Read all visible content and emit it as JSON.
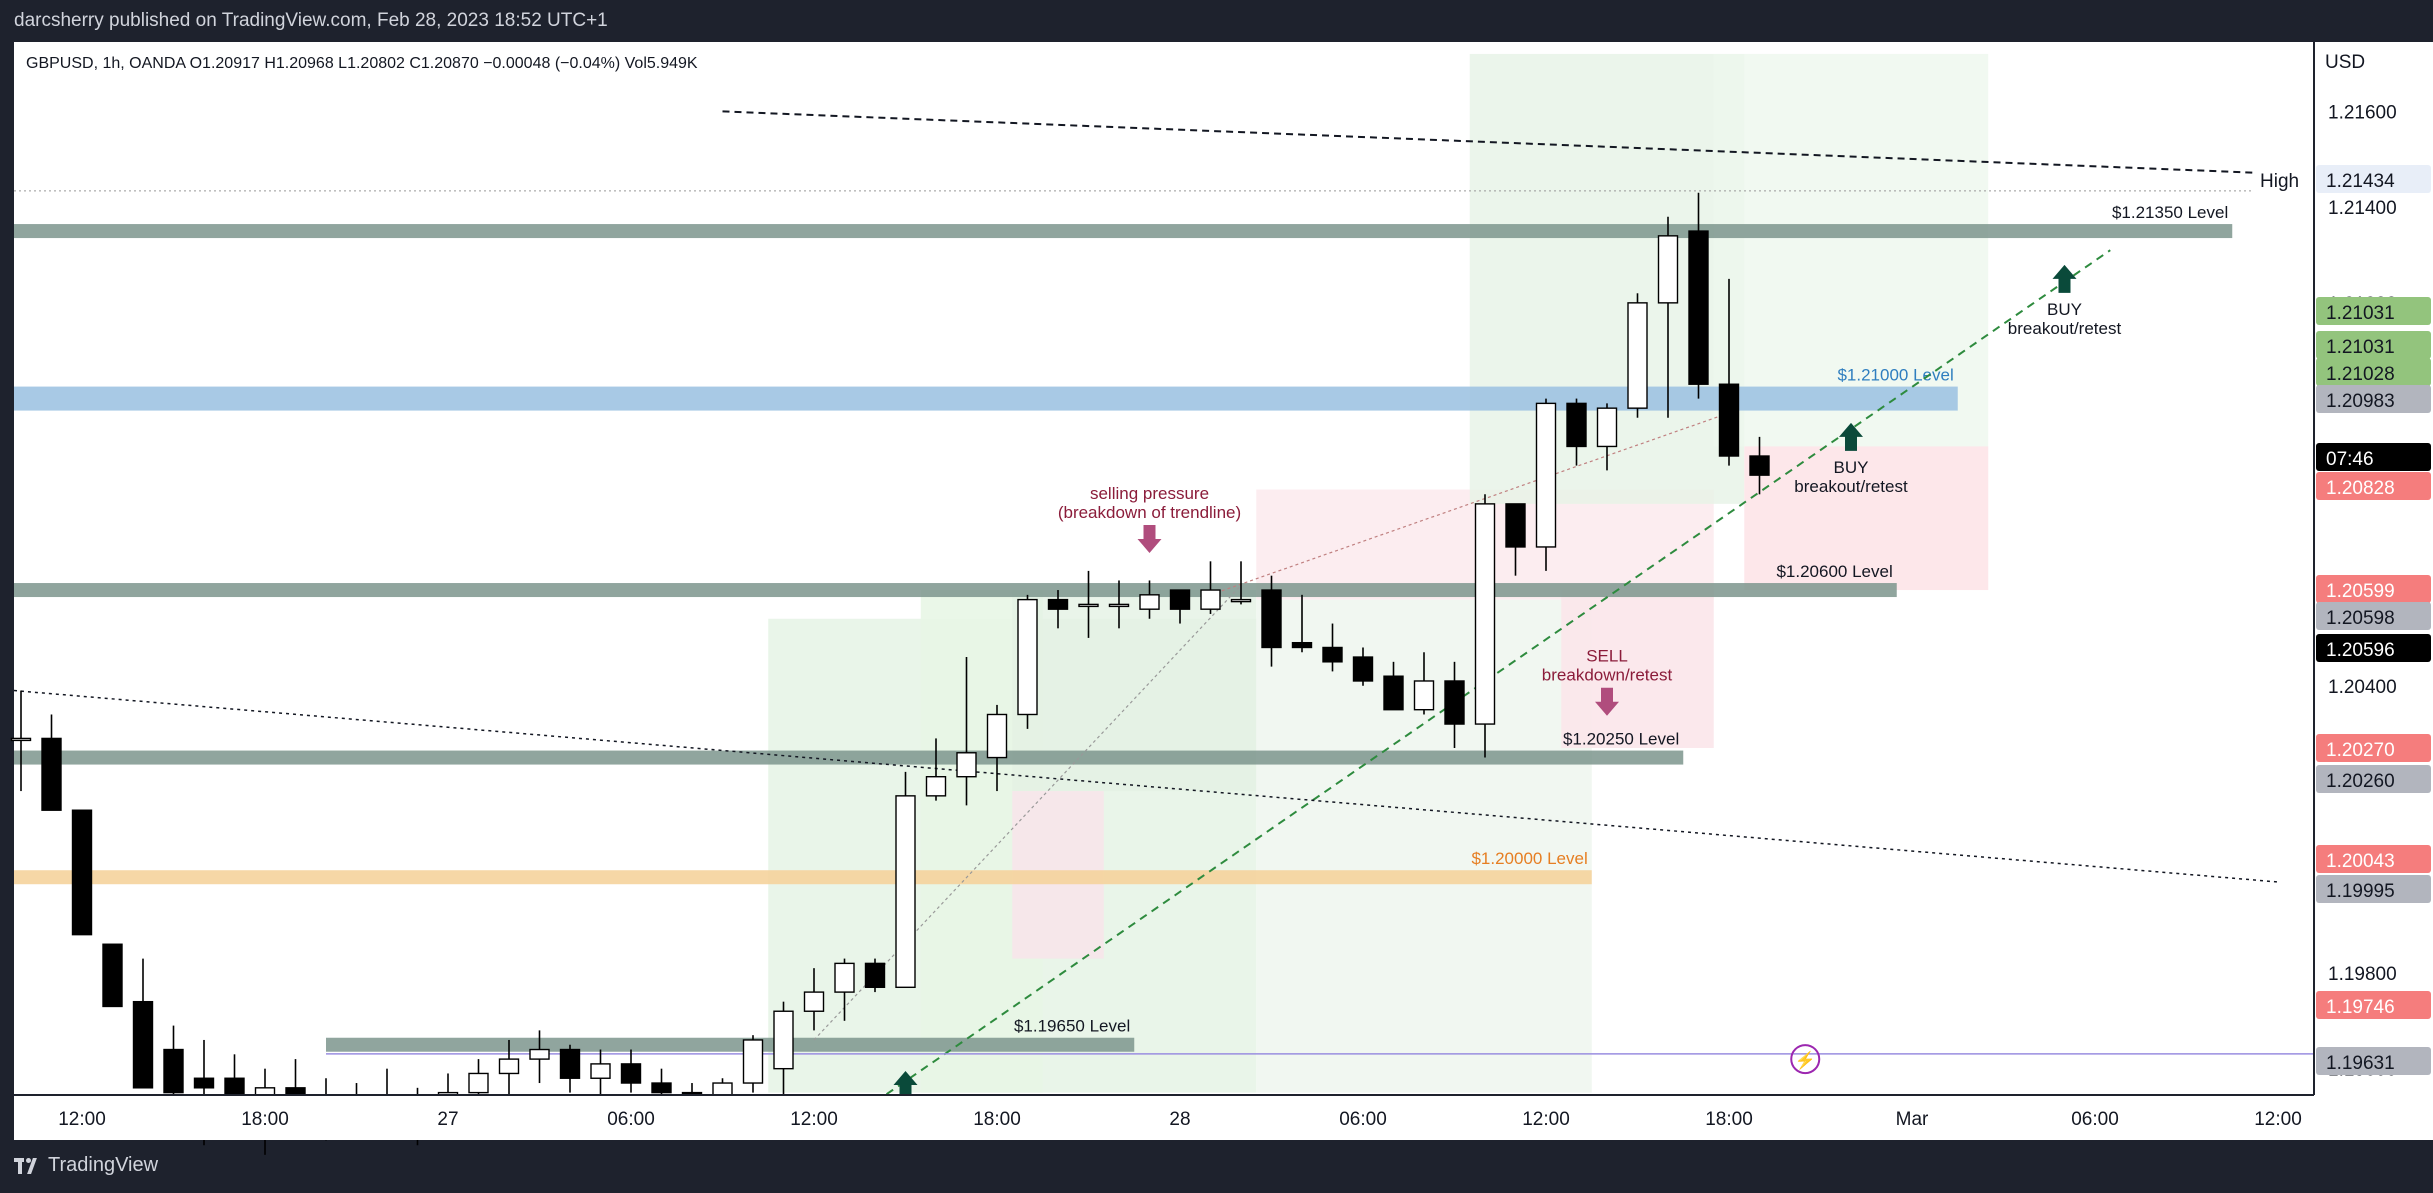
{
  "header": {
    "caption": "darcsherry published on TradingView.com, Feb 28, 2023 18:52 UTC+1",
    "symbol_line": "GBPUSD, 1h, OANDA  O1.20917  H1.20968  L1.20802  C1.20870  −0.00048 (−0.04%)  Vol5.949K"
  },
  "footer": {
    "brand": "TradingView"
  },
  "colors": {
    "up_body": "#ffffff",
    "down_body": "#000000",
    "wick": "#000000",
    "level_gray": "#7d958d",
    "level_blue": "#9ec3e2",
    "level_orange": "#f5d39c",
    "label_green": "#93c47d",
    "label_red": "#f57d7d",
    "label_gray": "#b2b5be",
    "annot_purple": "#b04d7d",
    "arrow_dark": "#0a4a3a",
    "level_blue_text": "#2f7ebf",
    "level_orange_text": "#e67e22"
  },
  "chart_data": {
    "type": "candlestick",
    "symbol": "GBPUSD",
    "interval": "1h",
    "exchange": "OANDA",
    "currency_label": "USD",
    "ylim": [
      1.19545,
      1.21745
    ],
    "y_ticks": [
      "1.21600",
      "1.21400",
      "1.21200",
      "1.20400",
      "1.19800",
      "1.19600"
    ],
    "x_ticks": [
      {
        "label": "12:00",
        "i": 0
      },
      {
        "label": "18:00",
        "i": 6
      },
      {
        "label": "27",
        "i": 12
      },
      {
        "label": "06:00",
        "i": 18
      },
      {
        "label": "12:00",
        "i": 24
      },
      {
        "label": "18:00",
        "i": 30
      },
      {
        "label": "28",
        "i": 36
      },
      {
        "label": "06:00",
        "i": 42
      },
      {
        "label": "12:00",
        "i": 48
      },
      {
        "label": "18:00",
        "i": 54
      },
      {
        "label": "Mar",
        "i": 60
      },
      {
        "label": "06:00",
        "i": 66
      },
      {
        "label": "12:00",
        "i": 72
      }
    ],
    "candles": [
      {
        "i": -2,
        "o": 1.2029,
        "h": 1.2039,
        "l": 1.2018,
        "c": 1.2029
      },
      {
        "i": -1,
        "o": 1.2029,
        "h": 1.2034,
        "l": 1.2014,
        "c": 1.2014
      },
      {
        "i": 0,
        "o": 1.2014,
        "h": 1.2014,
        "l": 1.1988,
        "c": 1.1988
      },
      {
        "i": 1,
        "o": 1.1986,
        "h": 1.1986,
        "l": 1.1973,
        "c": 1.1973
      },
      {
        "i": 2,
        "o": 1.1974,
        "h": 1.1983,
        "l": 1.1956,
        "c": 1.1956
      },
      {
        "i": 3,
        "o": 1.1964,
        "h": 1.1969,
        "l": 1.1947,
        "c": 1.1955
      },
      {
        "i": 4,
        "o": 1.1958,
        "h": 1.1966,
        "l": 1.1944,
        "c": 1.1956
      },
      {
        "i": 5,
        "o": 1.1958,
        "h": 1.1963,
        "l": 1.1946,
        "c": 1.1952
      },
      {
        "i": 6,
        "o": 1.195,
        "h": 1.196,
        "l": 1.1942,
        "c": 1.1956
      },
      {
        "i": 7,
        "o": 1.1956,
        "h": 1.1962,
        "l": 1.1948,
        "c": 1.1953
      },
      {
        "i": 8,
        "o": 1.1953,
        "h": 1.1958,
        "l": 1.1945,
        "c": 1.1951
      },
      {
        "i": 9,
        "o": 1.1951,
        "h": 1.1957,
        "l": 1.1946,
        "c": 1.1954
      },
      {
        "i": 10,
        "o": 1.1954,
        "h": 1.196,
        "l": 1.1948,
        "c": 1.195
      },
      {
        "i": 11,
        "o": 1.195,
        "h": 1.1956,
        "l": 1.1944,
        "c": 1.1953
      },
      {
        "i": 12,
        "o": 1.1953,
        "h": 1.1959,
        "l": 1.1946,
        "c": 1.1955
      },
      {
        "i": 13,
        "o": 1.1955,
        "h": 1.1962,
        "l": 1.195,
        "c": 1.1959
      },
      {
        "i": 14,
        "o": 1.1959,
        "h": 1.1966,
        "l": 1.1954,
        "c": 1.1962
      },
      {
        "i": 15,
        "o": 1.1962,
        "h": 1.1968,
        "l": 1.1957,
        "c": 1.1964
      },
      {
        "i": 16,
        "o": 1.1964,
        "h": 1.1965,
        "l": 1.1955,
        "c": 1.1958
      },
      {
        "i": 17,
        "o": 1.1958,
        "h": 1.1964,
        "l": 1.195,
        "c": 1.1961
      },
      {
        "i": 18,
        "o": 1.1961,
        "h": 1.1964,
        "l": 1.1955,
        "c": 1.1957
      },
      {
        "i": 19,
        "o": 1.1957,
        "h": 1.196,
        "l": 1.1952,
        "c": 1.1955
      },
      {
        "i": 20,
        "o": 1.1955,
        "h": 1.1957,
        "l": 1.195,
        "c": 1.1951
      },
      {
        "i": 21,
        "o": 1.1951,
        "h": 1.1958,
        "l": 1.1949,
        "c": 1.1957
      },
      {
        "i": 22,
        "o": 1.1957,
        "h": 1.1967,
        "l": 1.1955,
        "c": 1.1966
      },
      {
        "i": 23,
        "o": 1.196,
        "h": 1.1974,
        "l": 1.195,
        "c": 1.1972
      },
      {
        "i": 24,
        "o": 1.1972,
        "h": 1.1981,
        "l": 1.1968,
        "c": 1.1976
      },
      {
        "i": 25,
        "o": 1.1976,
        "h": 1.1983,
        "l": 1.197,
        "c": 1.1982
      },
      {
        "i": 26,
        "o": 1.1982,
        "h": 1.1983,
        "l": 1.1976,
        "c": 1.1977
      },
      {
        "i": 27,
        "o": 1.1977,
        "h": 1.2022,
        "l": 1.1977,
        "c": 1.2017
      },
      {
        "i": 28,
        "o": 1.2017,
        "h": 1.2029,
        "l": 1.2016,
        "c": 1.2021
      },
      {
        "i": 29,
        "o": 1.2021,
        "h": 1.2046,
        "l": 1.2015,
        "c": 1.2026
      },
      {
        "i": 30,
        "o": 1.2025,
        "h": 1.2036,
        "l": 1.2018,
        "c": 1.2034
      },
      {
        "i": 31,
        "o": 1.2034,
        "h": 1.2059,
        "l": 1.2031,
        "c": 1.2058
      },
      {
        "i": 32,
        "o": 1.2058,
        "h": 1.206,
        "l": 1.2052,
        "c": 1.2056
      },
      {
        "i": 33,
        "o": 1.2057,
        "h": 1.2064,
        "l": 1.205,
        "c": 1.2057
      },
      {
        "i": 34,
        "o": 1.2057,
        "h": 1.2062,
        "l": 1.2052,
        "c": 1.2057
      },
      {
        "i": 35,
        "o": 1.2056,
        "h": 1.2062,
        "l": 1.2054,
        "c": 1.2059
      },
      {
        "i": 36,
        "o": 1.206,
        "h": 1.206,
        "l": 1.2053,
        "c": 1.2056
      },
      {
        "i": 37,
        "o": 1.2056,
        "h": 1.2066,
        "l": 1.2055,
        "c": 1.206
      },
      {
        "i": 38,
        "o": 1.2058,
        "h": 1.2066,
        "l": 1.2057,
        "c": 1.2058
      },
      {
        "i": 39,
        "o": 1.206,
        "h": 1.2063,
        "l": 1.2044,
        "c": 1.2048
      },
      {
        "i": 40,
        "o": 1.2049,
        "h": 1.2059,
        "l": 1.2047,
        "c": 1.2048
      },
      {
        "i": 41,
        "o": 1.2048,
        "h": 1.2053,
        "l": 1.2043,
        "c": 1.2045
      },
      {
        "i": 42,
        "o": 1.2046,
        "h": 1.2048,
        "l": 1.204,
        "c": 1.2041
      },
      {
        "i": 43,
        "o": 1.2042,
        "h": 1.2045,
        "l": 1.2035,
        "c": 1.2035
      },
      {
        "i": 44,
        "o": 1.2035,
        "h": 1.2047,
        "l": 1.2034,
        "c": 1.2041
      },
      {
        "i": 45,
        "o": 1.2041,
        "h": 1.2045,
        "l": 1.2027,
        "c": 1.2032
      },
      {
        "i": 46,
        "o": 1.2032,
        "h": 1.208,
        "l": 1.2025,
        "c": 1.2078
      },
      {
        "i": 47,
        "o": 1.2078,
        "h": 1.2078,
        "l": 1.2063,
        "c": 1.2069
      },
      {
        "i": 48,
        "o": 1.2069,
        "h": 1.21,
        "l": 1.2064,
        "c": 1.2099
      },
      {
        "i": 49,
        "o": 1.2099,
        "h": 1.21,
        "l": 1.2086,
        "c": 1.209
      },
      {
        "i": 50,
        "o": 1.209,
        "h": 1.2099,
        "l": 1.2085,
        "c": 1.2098
      },
      {
        "i": 51,
        "o": 1.2098,
        "h": 1.2122,
        "l": 1.2096,
        "c": 1.212
      },
      {
        "i": 52,
        "o": 1.212,
        "h": 1.2138,
        "l": 1.2096,
        "c": 1.2134
      },
      {
        "i": 53,
        "o": 1.2135,
        "h": 1.2143,
        "l": 1.21,
        "c": 1.2103
      },
      {
        "i": 54,
        "o": 1.2103,
        "h": 1.2125,
        "l": 1.2086,
        "c": 1.2088
      },
      {
        "i": 55,
        "o": 1.2088,
        "h": 1.2092,
        "l": 1.208,
        "c": 1.2084
      }
    ],
    "levels": [
      {
        "label": "$1.21350 Level",
        "price": 1.2135,
        "kind": "gray"
      },
      {
        "label": "$1.21000 Level",
        "price": 1.21,
        "kind": "blue"
      },
      {
        "label": "$1.20600 Level",
        "price": 1.206,
        "kind": "gray"
      },
      {
        "label": "$1.20250 Level",
        "price": 1.2025,
        "kind": "gray"
      },
      {
        "label": "$1.20000 Level",
        "price": 1.2,
        "kind": "orange"
      },
      {
        "label": "$1.19650 Level",
        "price": 1.1965,
        "kind": "gray"
      }
    ],
    "annotations": [
      {
        "line1": "selling pressure",
        "line2": "(breakdown of trendline)",
        "i": 35,
        "price": 1.2069,
        "arrow": "down"
      },
      {
        "line1": "SELL",
        "line2": "breakdown/retest",
        "i": 50,
        "price": 1.2035,
        "arrow": "down"
      },
      {
        "line1": "BUY",
        "line2": "breakout/retest",
        "i": 58,
        "price": 1.2092,
        "arrow": "up"
      },
      {
        "line1": "BUY",
        "line2": "breakout/retest",
        "i": 65,
        "price": 1.2125,
        "arrow": "up"
      }
    ],
    "price_labels": [
      {
        "text": "1.21434",
        "style": "high",
        "tag": "High"
      },
      {
        "text": "1.21031",
        "style": "green"
      },
      {
        "text": "1.21031",
        "style": "green"
      },
      {
        "text": "1.21028",
        "style": "green"
      },
      {
        "text": "1.20983",
        "style": "gray"
      },
      {
        "text": "07:46",
        "style": "black"
      },
      {
        "text": "1.20828",
        "style": "red"
      },
      {
        "text": "1.20599",
        "style": "red"
      },
      {
        "text": "1.20598",
        "style": "gray"
      },
      {
        "text": "1.20596",
        "style": "black"
      },
      {
        "text": "1.20270",
        "style": "red"
      },
      {
        "text": "1.20260",
        "style": "gray"
      },
      {
        "text": "1.20043",
        "style": "red"
      },
      {
        "text": "1.19995",
        "style": "gray"
      },
      {
        "text": "1.19746",
        "style": "red"
      },
      {
        "text": "1.19631",
        "style": "gray"
      }
    ]
  }
}
